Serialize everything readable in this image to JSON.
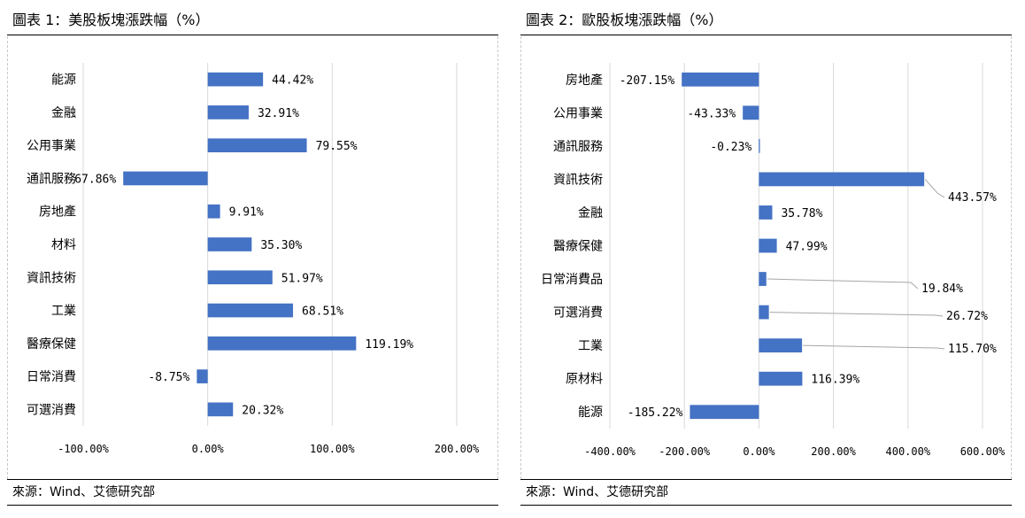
{
  "left": {
    "title": "圖表 1：美股板塊漲跌幅（%）",
    "source": "來源：Wind、艾德研究部"
  },
  "right": {
    "title": "圖表 2：歐股板塊漲跌幅（%）",
    "source": "來源：Wind、艾德研究部"
  },
  "colors": {
    "bar": "#4472c4",
    "grid": "#d9d9d9",
    "leader": "#a6a6a6"
  },
  "chart_data": [
    {
      "type": "bar",
      "orientation": "horizontal",
      "title": "圖表 1：美股板塊漲跌幅（%）",
      "categories": [
        "能源",
        "金融",
        "公用事業",
        "通訊服務",
        "房地產",
        "材料",
        "資訊技術",
        "工業",
        "醫療保健",
        "日常消費",
        "可選消費"
      ],
      "values": [
        44.42,
        32.91,
        79.55,
        -67.86,
        9.91,
        35.3,
        51.97,
        68.51,
        119.19,
        -8.75,
        20.32
      ],
      "labels": [
        "44.42%",
        "32.91%",
        "79.55%",
        "-67.86%",
        "9.91%",
        "35.30%",
        "51.97%",
        "68.51%",
        "119.19%",
        "-8.75%",
        "20.32%"
      ],
      "xlim": [
        -100,
        200
      ],
      "xticks": [
        -100,
        0,
        100,
        200
      ],
      "xtick_labels": [
        "-100.00%",
        "0.00%",
        "100.00%",
        "200.00%"
      ],
      "grid": true,
      "xlabel": "",
      "ylabel": ""
    },
    {
      "type": "bar",
      "orientation": "horizontal",
      "title": "圖表 2：歐股板塊漲跌幅（%）",
      "categories": [
        "房地產",
        "公用事業",
        "通訊服務",
        "資訊技術",
        "金融",
        "醫療保健",
        "日常消費品",
        "可選消費",
        "工業",
        "原材料",
        "能源"
      ],
      "values": [
        -207.15,
        -43.33,
        -0.23,
        443.57,
        35.78,
        47.99,
        19.84,
        26.72,
        115.7,
        116.39,
        -185.22
      ],
      "labels": [
        "-207.15%",
        "-43.33%",
        "-0.23%",
        "443.57%",
        "35.78%",
        "47.99%",
        "19.84%",
        "26.72%",
        "115.70%",
        "116.39%",
        "-185.22%"
      ],
      "xlim": [
        -400,
        600
      ],
      "xticks": [
        -400,
        -200,
        0,
        200,
        400,
        600
      ],
      "xtick_labels": [
        "-400.00%",
        "-200.00%",
        "0.00%",
        "200.00%",
        "400.00%",
        "600.00%"
      ],
      "grid": true,
      "xlabel": "",
      "ylabel": ""
    }
  ]
}
